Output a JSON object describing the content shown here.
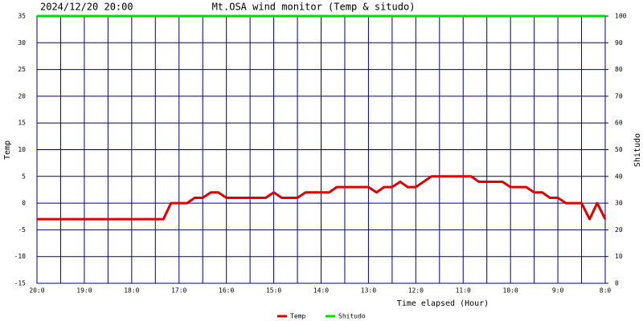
{
  "chart_data": {
    "type": "line",
    "title": "Mt.OSA wind monitor (Temp & situdo)",
    "subtitle": "2024/12/20 20:00",
    "xlabel": "Time elapsed (Hour)",
    "ylabel": "Temp",
    "y2label": "Shitudo",
    "xlim": [
      0,
      12
    ],
    "xticks": [
      {
        "value": 0,
        "label": "20:0"
      },
      {
        "value": 1,
        "label": "19:0"
      },
      {
        "value": 2,
        "label": "18:0"
      },
      {
        "value": 3,
        "label": "17:0"
      },
      {
        "value": 4,
        "label": "16:0"
      },
      {
        "value": 5,
        "label": "15:0"
      },
      {
        "value": 6,
        "label": "14:0"
      },
      {
        "value": 7,
        "label": "13:0"
      },
      {
        "value": 8,
        "label": "12:0"
      },
      {
        "value": 9,
        "label": "11:0"
      },
      {
        "value": 10,
        "label": "10:0"
      },
      {
        "value": 11,
        "label": "9:0"
      },
      {
        "value": 12,
        "label": "8:0"
      }
    ],
    "ylim": [
      -15,
      35
    ],
    "yticks": [
      -15,
      -10,
      -5,
      0,
      5,
      10,
      15,
      20,
      25,
      30,
      35
    ],
    "y2lim": [
      0,
      100
    ],
    "y2ticks": [
      0,
      10,
      20,
      30,
      40,
      50,
      60,
      70,
      80,
      90,
      100
    ],
    "grid": true,
    "grid_color": "#000080",
    "legend": "bottom",
    "series": [
      {
        "name": "Temp",
        "color": "#e00000",
        "x": [
          0,
          2.67,
          2.83,
          3.17,
          3.33,
          3.5,
          3.67,
          3.83,
          4.0,
          4.83,
          5.0,
          5.17,
          5.5,
          5.67,
          6.17,
          6.33,
          7.0,
          7.17,
          7.33,
          7.5,
          7.67,
          7.83,
          8.0,
          8.33,
          9.17,
          9.33,
          9.83,
          10.0,
          10.33,
          10.5,
          10.67,
          10.83,
          11.0,
          11.17,
          11.5,
          11.67,
          11.83,
          12
        ],
        "values": [
          -3,
          -3,
          0,
          0,
          1,
          1,
          2,
          2,
          1,
          1,
          2,
          1,
          1,
          2,
          2,
          3,
          3,
          2,
          3,
          3,
          4,
          3,
          3,
          5,
          5,
          4,
          4,
          3,
          3,
          2,
          2,
          1,
          1,
          0,
          0,
          -3,
          0,
          -3
        ]
      },
      {
        "name": "Shitudo",
        "color": "#00e000",
        "axis": "y2",
        "x": [
          0,
          12
        ],
        "values": [
          100,
          100
        ]
      }
    ]
  }
}
